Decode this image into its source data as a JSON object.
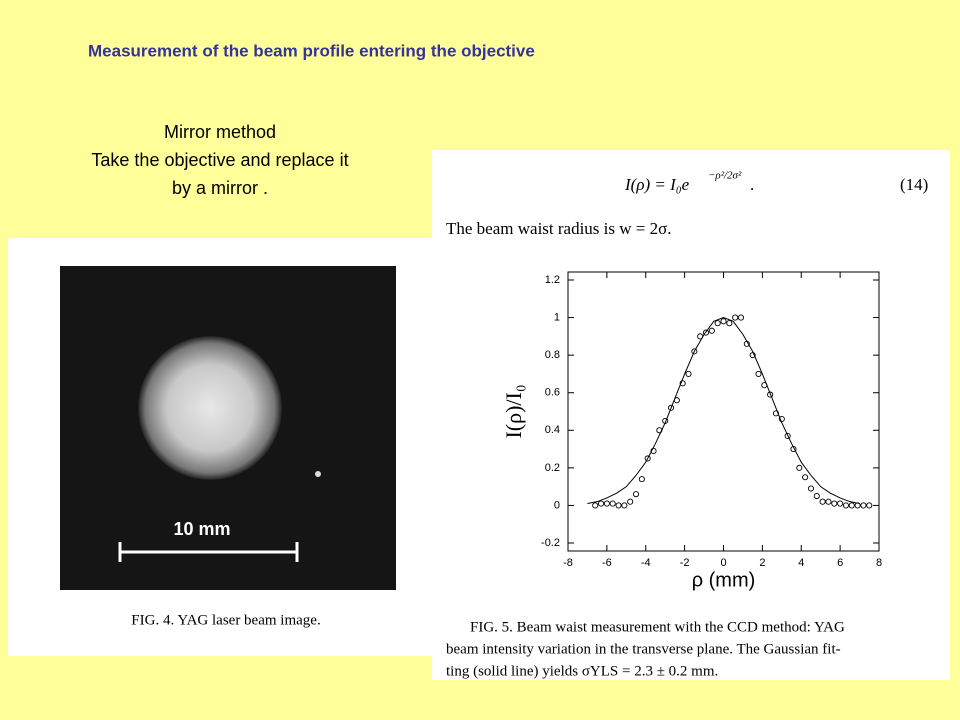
{
  "slide_title": "Measurement of the beam profile entering the objective",
  "method": {
    "heading": "Mirror method",
    "line1": "Take the objective and replace it",
    "line2": "by a mirror ."
  },
  "figure4": {
    "scale_label": "10 mm",
    "caption": "FIG. 4.  YAG laser beam image."
  },
  "equation": {
    "lhs": "I(ρ) = I₀e",
    "exponent": "−ρ²/2σ²",
    "end": ".",
    "number": "(14)"
  },
  "waist_text": "The beam waist radius is w = 2σ.",
  "caption5": {
    "line1": "FIG. 5.  Beam waist measurement with the CCD method: YAG",
    "line2": "beam intensity variation in the transverse plane. The Gaussian fit-",
    "line3": "ting (solid line) yields σYLS = 2.3 ± 0.2 mm."
  },
  "chart_data": {
    "type": "scatter",
    "xlabel": "ρ (mm)",
    "ylabel": "I(ρ)/I₀",
    "xlim": [
      -8,
      8
    ],
    "xticks": [
      -8,
      -6,
      -4,
      -2,
      0,
      2,
      4,
      6,
      8
    ],
    "ylim": [
      -0.2,
      1.2
    ],
    "yticks": [
      -0.2,
      0,
      0.2,
      0.4,
      0.6,
      0.8,
      1,
      1.2
    ],
    "grid": false,
    "series": [
      {
        "kind": "scatter",
        "color": "#000000",
        "x": [
          -6.6,
          -6.3,
          -6,
          -5.7,
          -5.4,
          -5.1,
          -4.8,
          -4.5,
          -4.2,
          -3.9,
          -3.6,
          -3.3,
          -3,
          -2.7,
          -2.4,
          -2.1,
          -1.8,
          -1.5,
          -1.2,
          -0.9,
          -0.6,
          -0.3,
          0,
          0.3,
          0.6,
          0.9,
          1.2,
          1.5,
          1.8,
          2.1,
          2.4,
          2.7,
          3,
          3.3,
          3.6,
          3.9,
          4.2,
          4.5,
          4.8,
          5.1,
          5.4,
          5.7,
          6,
          6.3,
          6.6,
          6.9,
          7.2,
          7.5
        ],
        "values": [
          0,
          0.01,
          0.01,
          0.01,
          0,
          0,
          0.02,
          0.06,
          0.14,
          0.25,
          0.29,
          0.4,
          0.45,
          0.52,
          0.56,
          0.65,
          0.7,
          0.82,
          0.9,
          0.92,
          0.93,
          0.97,
          0.98,
          0.97,
          1,
          1,
          0.86,
          0.8,
          0.7,
          0.64,
          0.59,
          0.49,
          0.46,
          0.37,
          0.3,
          0.2,
          0.15,
          0.09,
          0.05,
          0.02,
          0.02,
          0.01,
          0.01,
          0,
          0,
          0,
          0,
          0
        ]
      },
      {
        "kind": "line",
        "color": "#000000",
        "x": [
          -7,
          -6.5,
          -6,
          -5.5,
          -5,
          -4.5,
          -4,
          -3.5,
          -3,
          -2.5,
          -2,
          -1.5,
          -1,
          -0.5,
          0,
          0.5,
          1,
          1.5,
          2,
          2.5,
          3,
          3.5,
          4,
          4.5,
          5,
          5.5,
          6,
          6.5,
          7
        ],
        "values": [
          0.01,
          0.02,
          0.04,
          0.065,
          0.1,
          0.16,
          0.23,
          0.33,
          0.44,
          0.57,
          0.7,
          0.82,
          0.91,
          0.98,
          1,
          0.98,
          0.91,
          0.82,
          0.7,
          0.57,
          0.44,
          0.33,
          0.23,
          0.16,
          0.1,
          0.065,
          0.04,
          0.02,
          0.01
        ]
      }
    ]
  }
}
